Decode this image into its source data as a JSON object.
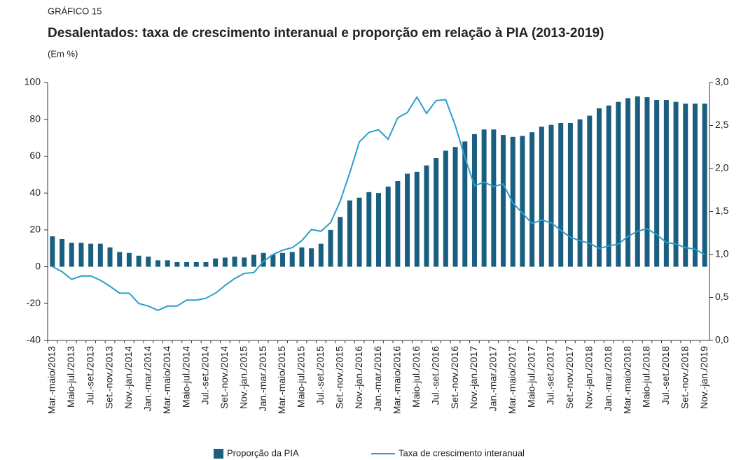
{
  "chart_data": {
    "type": "bar-line",
    "kicker": "GRÁFICO 15",
    "title": "Desalentados: taxa de crescimento interanual e proporção em relação à PIA (2013-2019)",
    "subtitle": "(Em %)",
    "categories": [
      "Mar.-maio/2013",
      null,
      "Maio-jul./2013",
      null,
      "Jul.-set./2013",
      null,
      "Set.-nov./2013",
      null,
      "Nov.-jan./2014",
      null,
      "Jan.-mar./2014",
      null,
      "Mar.-maio/2014",
      null,
      "Maio-jul./2014",
      null,
      "Jul.-set./2014",
      null,
      "Set.-nov./2014",
      null,
      "Nov.-jan./2015",
      null,
      "Jan.-mar./2015",
      null,
      "Mar.-maio/2015",
      null,
      "Maio-jul./2015",
      null,
      "Jul.-set./2015",
      null,
      "Set.-nov./2015",
      null,
      "Nov.-jan./2016",
      null,
      "Jan.-mar./2016",
      null,
      "Mar.-maio/2016",
      null,
      "Maio-jul./2016",
      null,
      "Jul.-set./2016",
      null,
      "Set.-nov./2016",
      null,
      "Nov.-jan./2017",
      null,
      "Jan.-mar./2017",
      null,
      "Mar.-maio/2017",
      null,
      "Maio-jul./2017",
      null,
      "Jul.-set./2017",
      null,
      "Set.-nov./2017",
      null,
      "Nov.-jan./2018",
      null,
      "Jan.-mar./2018",
      null,
      "Mar.-maio/2018",
      null,
      "Maio-jul./2018",
      null,
      "Jul.-set./2018",
      null,
      "Set.-nov./2018",
      null,
      "Nov.-jan./2019"
    ],
    "series": [
      {
        "name": "Proporção da PIA",
        "type": "bar",
        "color": "#1a5e80",
        "axis": "y",
        "values": [
          16.5,
          15,
          13,
          13,
          12.5,
          12.5,
          10.5,
          8,
          7.5,
          6,
          5.5,
          3.5,
          3.5,
          2.5,
          2.5,
          2.5,
          2.5,
          4.5,
          5,
          5.5,
          5,
          6.5,
          7.5,
          6.5,
          7.5,
          8,
          10.5,
          10,
          12.5,
          20,
          27,
          36,
          37.5,
          40.5,
          40,
          43.5,
          46.5,
          50.5,
          51.5,
          55,
          59,
          63,
          65,
          68,
          72,
          74.5,
          74.5,
          71.5,
          70.5,
          71,
          73,
          76,
          77,
          78,
          78,
          80,
          82,
          86,
          87.5,
          89.5,
          91.5,
          92.5,
          92,
          90.5,
          90.5,
          89.5,
          88.5,
          88.5,
          88.5
        ]
      },
      {
        "name": "Taxa de crescimento interanual",
        "type": "line",
        "color": "#2a9fc9",
        "axis": "y2",
        "values": [
          0.86,
          0.8,
          0.71,
          0.75,
          0.75,
          0.7,
          0.63,
          0.55,
          0.55,
          0.43,
          0.4,
          0.35,
          0.4,
          0.4,
          0.47,
          0.47,
          0.49,
          0.55,
          0.64,
          0.72,
          0.78,
          0.79,
          0.92,
          1.0,
          1.05,
          1.08,
          1.16,
          1.29,
          1.27,
          1.37,
          1.62,
          1.95,
          2.31,
          2.42,
          2.45,
          2.34,
          2.59,
          2.65,
          2.83,
          2.64,
          2.79,
          2.8,
          2.5,
          2.13,
          1.8,
          1.84,
          1.79,
          1.82,
          1.6,
          1.48,
          1.36,
          1.4,
          1.37,
          1.28,
          1.2,
          1.16,
          1.13,
          1.07,
          1.1,
          1.12,
          1.21,
          1.27,
          1.3,
          1.23,
          1.14,
          1.12,
          1.08,
          1.06,
          1.0
        ]
      }
    ],
    "ylim": [
      -40,
      100
    ],
    "yticks": [
      -40,
      -20,
      0,
      20,
      40,
      60,
      80,
      100
    ],
    "y2lim": [
      0,
      3
    ],
    "y2ticks": [
      {
        "value": 0,
        "label": "0,0"
      },
      {
        "value": 0.5,
        "label": "0,5"
      },
      {
        "value": 1,
        "label": "1,0"
      },
      {
        "value": 1.5,
        "label": "1,5"
      },
      {
        "value": 2,
        "label": "2,0"
      },
      {
        "value": 2.5,
        "label": "2,5"
      },
      {
        "value": 3,
        "label": "3,0"
      }
    ],
    "grid": false,
    "legend": "bottom"
  }
}
